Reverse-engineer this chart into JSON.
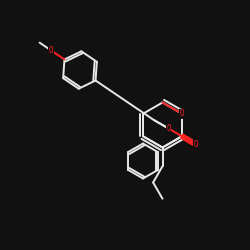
{
  "bg_color": "#111111",
  "bond_color": "#e8e8e8",
  "o_color": "#ff2222",
  "lw": 1.4,
  "figsize": [
    2.5,
    2.5
  ],
  "dpi": 100,
  "xlim": [
    0,
    10
  ],
  "ylim": [
    0,
    10
  ]
}
